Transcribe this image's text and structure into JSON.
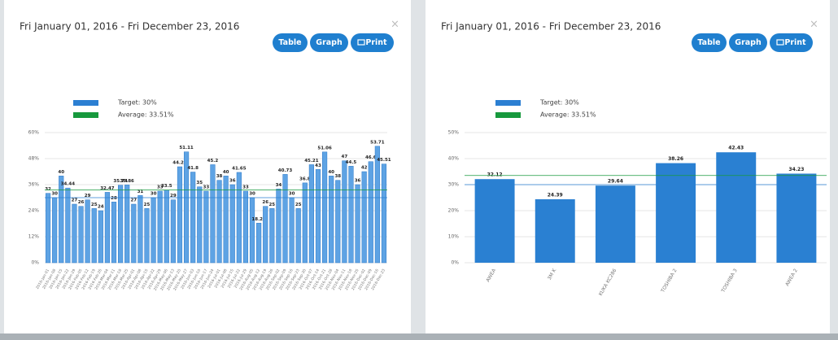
{
  "panels": [
    {
      "title": "Fri January 01, 2016 - Fri December 23, 2016",
      "close": "×",
      "buttons": [
        "Table",
        "Graph",
        "Print"
      ]
    },
    {
      "title": "Fri January 01, 2016 - Fri December 23, 2016",
      "close": "×",
      "buttons": [
        "Table",
        "Graph",
        "Print"
      ]
    }
  ],
  "chart_data": [
    {
      "type": "bar",
      "color": "#5ea3e4",
      "categories": [
        "2016-Jan-01",
        "2016-Jan-08",
        "2016-Jan-15",
        "2016-Jan-22",
        "2016-Jan-29",
        "2016-Feb-05",
        "2016-Feb-12",
        "2016-Feb-19",
        "2016-Feb-26",
        "2016-Mar-04",
        "2016-Mar-11",
        "2016-Mar-18",
        "2016-Mar-25",
        "2016-Apr-01",
        "2016-Apr-08",
        "2016-Apr-15",
        "2016-Apr-22",
        "2016-Apr-29",
        "2016-May-06",
        "2016-May-13",
        "2016-May-20",
        "2016-May-27",
        "2016-Jun-03",
        "2016-Jun-10",
        "2016-Jun-17",
        "2016-Jun-24",
        "2016-Jul-01",
        "2016-Jul-08",
        "2016-Jul-15",
        "2016-Jul-22",
        "2016-Jul-29",
        "2016-Aug-05",
        "2016-Aug-12",
        "2016-Aug-19",
        "2016-Aug-26",
        "2016-Sep-02",
        "2016-Sep-09",
        "2016-Sep-16",
        "2016-Sep-23",
        "2016-Sep-30",
        "2016-Oct-07",
        "2016-Oct-14",
        "2016-Oct-21",
        "2016-Oct-28",
        "2016-Nov-04",
        "2016-Nov-11",
        "2016-Nov-18",
        "2016-Nov-25",
        "2016-Dec-02",
        "2016-Dec-09",
        "2016-Dec-16",
        "2016-Dec-23"
      ],
      "values": [
        32,
        30,
        40,
        34.44,
        27,
        26,
        29,
        25,
        24,
        32.47,
        28,
        35.74,
        35.86,
        27,
        31,
        25,
        30,
        33,
        33.5,
        29,
        44.25,
        51.11,
        41.8,
        35,
        33,
        45.2,
        38,
        40,
        36,
        41.65,
        33,
        30,
        18.25,
        26,
        25,
        34,
        40.73,
        30,
        25,
        36.8,
        45.21,
        43,
        51.06,
        40,
        38,
        47,
        44.5,
        36,
        42,
        46.6,
        53.71,
        45.51
      ],
      "ylim": [
        0,
        60
      ],
      "yticks": [
        {
          "value": 0,
          "label": "0%"
        },
        {
          "value": 12,
          "label": "12%"
        },
        {
          "value": 24,
          "label": "24%"
        },
        {
          "value": 36,
          "label": "36%"
        },
        {
          "value": 48,
          "label": "48%"
        },
        {
          "value": 60,
          "label": "60%"
        }
      ],
      "reference_lines": [
        {
          "name": "Target: 30%",
          "value": 30,
          "color": "#2b7fd2"
        },
        {
          "name": "Average: 33.51%",
          "value": 33.51,
          "color": "#17993d"
        }
      ]
    },
    {
      "type": "bar",
      "color": "#2a80d2",
      "categories": [
        "AWEA",
        "3M K",
        "KUKA KC286",
        "TOSHIBA 2",
        "TOSHIBA 3",
        "AWEA 2"
      ],
      "values": [
        32.12,
        24.39,
        29.64,
        38.26,
        42.43,
        34.23
      ],
      "ylim": [
        0,
        50
      ],
      "yticks": [
        {
          "value": 0,
          "label": "0%"
        },
        {
          "value": 10,
          "label": "10%"
        },
        {
          "value": 20,
          "label": "20%"
        },
        {
          "value": 30,
          "label": "30%"
        },
        {
          "value": 40,
          "label": "40%"
        },
        {
          "value": 50,
          "label": "50%"
        }
      ],
      "reference_lines": [
        {
          "name": "Target: 30%",
          "value": 30,
          "color": "#2b7fd2"
        },
        {
          "name": "Average: 33.51%",
          "value": 33.51,
          "color": "#17993d"
        }
      ]
    }
  ]
}
